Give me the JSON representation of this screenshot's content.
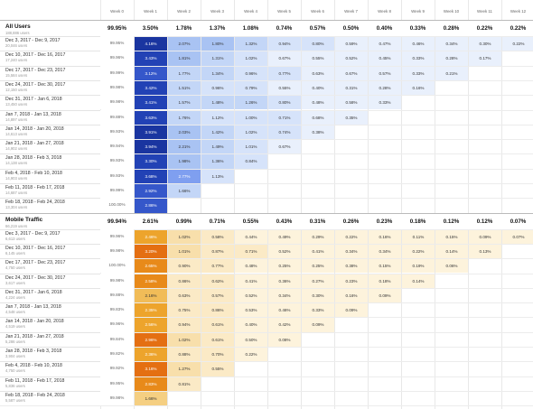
{
  "columns": [
    "Week 0",
    "Week 1",
    "Week 2",
    "Week 3",
    "Week 4",
    "Week 5",
    "Week 6",
    "Week 7",
    "Week 8",
    "Week 9",
    "Week 10",
    "Week 11",
    "Week 12"
  ],
  "colors": {
    "blue_scale": [
      "#e9f0fc",
      "#d6e3fa",
      "#c3d6f7",
      "#a9c3f3",
      "#7f9ff0",
      "#3557ca",
      "#2242b5",
      "#1a35a0"
    ],
    "orange_scale": [
      "#fdf3dc",
      "#fbeac6",
      "#f8dfab",
      "#f5cf82",
      "#f1bc58",
      "#eda42c",
      "#e88a1a",
      "#e46f12"
    ]
  },
  "sections": [
    {
      "title": "All Users",
      "subtitle": "188,886 users",
      "summary": [
        "99.95%",
        "3.50%",
        "1.78%",
        "1.37%",
        "1.08%",
        "0.74%",
        "0.57%",
        "0.50%",
        "0.40%",
        "0.33%",
        "0.28%",
        "0.22%",
        "0.22%"
      ],
      "rows": [
        {
          "label": "Dec 3, 2017 - Dec 9, 2017",
          "sub": "20,046 users",
          "values": [
            "99.95%",
            "4.16%",
            "2.07%",
            "1.80%",
            "1.32%",
            "0.94%",
            "0.80%",
            "0.59%",
            "0.47%",
            "0.46%",
            "0.34%",
            "0.30%",
            "0.22%"
          ]
        },
        {
          "label": "Dec 10, 2017 - Dec 16, 2017",
          "sub": "17,240 users",
          "values": [
            "99.96%",
            "3.43%",
            "1.81%",
            "1.31%",
            "1.02%",
            "0.67%",
            "0.55%",
            "0.52%",
            "0.45%",
            "0.33%",
            "0.28%",
            "0.17%",
            ""
          ]
        },
        {
          "label": "Dec 17, 2017 - Dec 23, 2017",
          "sub": "15,584 users",
          "values": [
            "99.99%",
            "3.12%",
            "1.77%",
            "1.34%",
            "0.96%",
            "0.77%",
            "0.63%",
            "0.67%",
            "0.57%",
            "0.33%",
            "0.21%",
            "",
            ""
          ]
        },
        {
          "label": "Dec 24, 2017 - Dec 30, 2017",
          "sub": "12,150 users",
          "values": [
            "99.98%",
            "3.42%",
            "1.51%",
            "0.96%",
            "0.79%",
            "0.55%",
            "0.40%",
            "0.31%",
            "0.28%",
            "0.16%",
            "",
            "",
            ""
          ]
        },
        {
          "label": "Dec 31, 2017 - Jan 6, 2018",
          "sub": "13,450 users",
          "values": [
            "99.98%",
            "3.41%",
            "1.57%",
            "1.48%",
            "1.26%",
            "0.80%",
            "0.48%",
            "0.58%",
            "0.33%",
            "",
            "",
            "",
            ""
          ]
        },
        {
          "label": "Jan 7, 2018 - Jan 13, 2018",
          "sub": "14,897 users",
          "values": [
            "99.88%",
            "3.63%",
            "1.76%",
            "1.12%",
            "1.00%",
            "0.71%",
            "0.68%",
            "0.35%",
            "",
            "",
            "",
            "",
            ""
          ]
        },
        {
          "label": "Jan 14, 2018 - Jan 20, 2018",
          "sub": "14,613 users",
          "values": [
            "99.93%",
            "3.91%",
            "2.03%",
            "1.42%",
            "1.02%",
            "0.74%",
            "0.38%",
            "",
            "",
            "",
            "",
            "",
            ""
          ]
        },
        {
          "label": "Jan 21, 2018 - Jan 27, 2018",
          "sub": "14,902 users",
          "values": [
            "99.94%",
            "3.94%",
            "2.21%",
            "1.49%",
            "1.01%",
            "0.67%",
            "",
            "",
            "",
            "",
            "",
            "",
            ""
          ]
        },
        {
          "label": "Jan 28, 2018 - Feb 3, 2018",
          "sub": "14,138 users",
          "values": [
            "99.93%",
            "3.30%",
            "1.98%",
            "1.36%",
            "0.84%",
            "",
            "",
            "",
            "",
            "",
            "",
            "",
            ""
          ]
        },
        {
          "label": "Feb 4, 2018 - Feb 10, 2018",
          "sub": "14,903 users",
          "values": [
            "99.93%",
            "3.68%",
            "2.77%",
            "1.13%",
            "",
            "",
            "",
            "",
            "",
            "",
            "",
            "",
            ""
          ]
        },
        {
          "label": "Feb 11, 2018 - Feb 17, 2018",
          "sub": "14,687 users",
          "values": [
            "99.99%",
            "2.92%",
            "1.66%",
            "",
            "",
            "",
            "",
            "",
            "",
            "",
            "",
            "",
            ""
          ]
        },
        {
          "label": "Feb 18, 2018 - Feb 24, 2018",
          "sub": "13,304 users",
          "values": [
            "100.00%",
            "2.86%",
            "",
            "",
            "",
            "",
            "",
            "",
            "",
            "",
            "",
            "",
            ""
          ]
        }
      ]
    },
    {
      "title": "Mobile Traffic",
      "subtitle": "66,219 users",
      "summary": [
        "99.94%",
        "2.61%",
        "0.99%",
        "0.71%",
        "0.55%",
        "0.43%",
        "0.31%",
        "0.26%",
        "0.23%",
        "0.18%",
        "0.12%",
        "0.12%",
        "0.07%"
      ],
      "rows": [
        {
          "label": "Dec 3, 2017 - Dec 9, 2017",
          "sub": "6,613 users",
          "values": [
            "99.96%",
            "2.46%",
            "1.02%",
            "0.58%",
            "0.44%",
            "0.49%",
            "0.29%",
            "0.22%",
            "0.16%",
            "0.11%",
            "0.15%",
            "0.09%",
            "0.07%"
          ]
        },
        {
          "label": "Dec 10, 2017 - Dec 16, 2017",
          "sub": "6,145 users",
          "values": [
            "99.98%",
            "3.20%",
            "1.01%",
            "0.87%",
            "0.71%",
            "0.52%",
            "0.41%",
            "0.34%",
            "0.34%",
            "0.22%",
            "0.14%",
            "0.13%",
            ""
          ]
        },
        {
          "label": "Dec 17, 2017 - Dec 23, 2017",
          "sub": "4,750 users",
          "values": [
            "100.00%",
            "2.65%",
            "0.90%",
            "0.77%",
            "0.48%",
            "0.25%",
            "0.25%",
            "0.38%",
            "0.15%",
            "0.19%",
            "0.06%",
            "",
            ""
          ]
        },
        {
          "label": "Dec 24, 2017 - Dec 30, 2017",
          "sub": "3,617 users",
          "values": [
            "99.98%",
            "2.58%",
            "0.86%",
            "0.62%",
            "0.41%",
            "0.36%",
            "0.27%",
            "0.23%",
            "0.18%",
            "0.14%",
            "",
            "",
            ""
          ]
        },
        {
          "label": "Dec 31, 2017 - Jan 6, 2018",
          "sub": "4,224 users",
          "values": [
            "99.88%",
            "2.16%",
            "0.63%",
            "0.57%",
            "0.52%",
            "0.34%",
            "0.30%",
            "0.16%",
            "0.09%",
            "",
            "",
            "",
            ""
          ]
        },
        {
          "label": "Jan 7, 2018 - Jan 13, 2018",
          "sub": "4,548 users",
          "values": [
            "99.83%",
            "2.35%",
            "0.75%",
            "0.86%",
            "0.53%",
            "0.46%",
            "0.33%",
            "0.09%",
            "",
            "",
            "",
            "",
            ""
          ]
        },
        {
          "label": "Jan 14, 2018 - Jan 20, 2018",
          "sub": "4,519 users",
          "values": [
            "99.96%",
            "2.56%",
            "0.94%",
            "0.61%",
            "0.40%",
            "0.42%",
            "0.09%",
            "",
            "",
            "",
            "",
            "",
            ""
          ]
        },
        {
          "label": "Jan 21, 2018 - Jan 27, 2018",
          "sub": "5,286 users",
          "values": [
            "99.84%",
            "2.96%",
            "1.02%",
            "0.61%",
            "0.50%",
            "0.08%",
            "",
            "",
            "",
            "",
            "",
            "",
            ""
          ]
        },
        {
          "label": "Jan 28, 2018 - Feb 3, 2018",
          "sub": "3,904 users",
          "values": [
            "99.82%",
            "2.36%",
            "0.88%",
            "0.70%",
            "0.22%",
            "",
            "",
            "",
            "",
            "",
            "",
            "",
            ""
          ]
        },
        {
          "label": "Feb 4, 2018 - Feb 10, 2018",
          "sub": "4,750 users",
          "values": [
            "99.92%",
            "3.16%",
            "1.27%",
            "0.55%",
            "",
            "",
            "",
            "",
            "",
            "",
            "",
            "",
            ""
          ]
        },
        {
          "label": "Feb 11, 2018 - Feb 17, 2018",
          "sub": "5,836 users",
          "values": [
            "99.95%",
            "2.83%",
            "0.81%",
            "",
            "",
            "",
            "",
            "",
            "",
            "",
            "",
            "",
            ""
          ]
        },
        {
          "label": "Feb 18, 2018 - Feb 24, 2018",
          "sub": "5,587 users",
          "values": [
            "99.98%",
            "1.66%",
            "",
            "",
            "",
            "",
            "",
            "",
            "",
            "",
            "",
            "",
            ""
          ]
        }
      ]
    }
  ]
}
